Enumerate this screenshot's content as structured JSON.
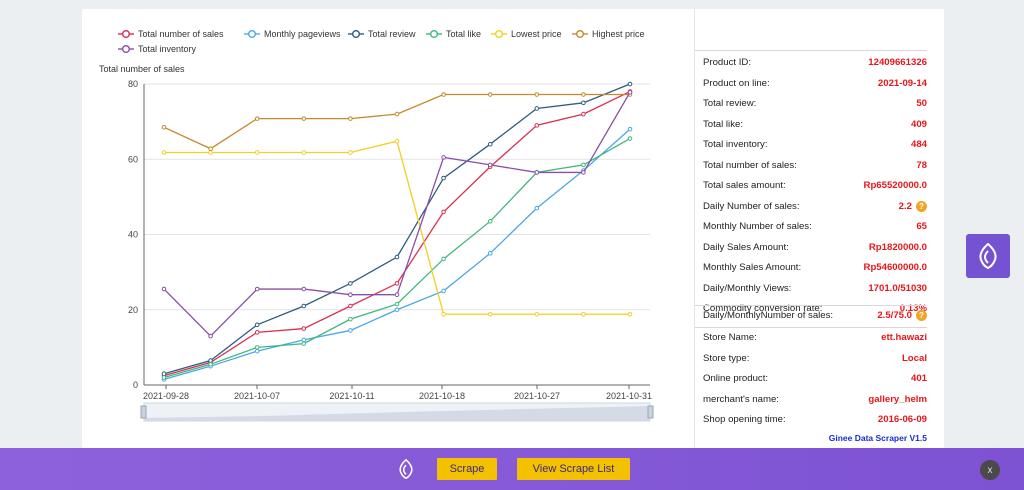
{
  "legend": [
    {
      "name": "Total number of sales",
      "color": "#d9304f"
    },
    {
      "name": "Monthly pageviews",
      "color": "#4aa8e8"
    },
    {
      "name": "Total review",
      "color": "#2e5d82"
    },
    {
      "name": "Total like",
      "color": "#3fb87d"
    },
    {
      "name": "Lowest price",
      "color": "#f0d020"
    },
    {
      "name": "Highest price",
      "color": "#c48a2a"
    },
    {
      "name": "Total inventory",
      "color": "#8a4fa6"
    }
  ],
  "chart_data": {
    "type": "line",
    "ylabel": "Total number of sales",
    "ylim": [
      0,
      80
    ],
    "yticks": [
      0,
      20,
      40,
      60,
      80
    ],
    "x_tick_labels": [
      "2021-09-28",
      "2021-10-07",
      "2021-10-11",
      "2021-10-18",
      "2021-10-27",
      "2021-10-31"
    ],
    "grid": true,
    "legend_position": "top",
    "series": [
      {
        "name": "Total number of sales",
        "color": "#d9304f",
        "values": [
          2.5,
          6,
          14,
          15,
          21,
          27,
          46,
          58,
          69,
          72,
          78
        ]
      },
      {
        "name": "Monthly pageviews",
        "color": "#4aa8e8",
        "values": [
          1.5,
          5,
          9,
          12,
          14.5,
          20,
          25,
          35,
          47,
          57,
          68
        ]
      },
      {
        "name": "Total review",
        "color": "#2e5d82",
        "values": [
          3,
          6.5,
          16,
          21,
          27,
          34,
          55,
          64,
          73.5,
          75,
          80
        ]
      },
      {
        "name": "Total like",
        "color": "#3fb87d",
        "values": [
          2,
          5.5,
          10,
          11,
          17.5,
          21.5,
          33.5,
          43.5,
          56.5,
          58.5,
          65.5
        ]
      },
      {
        "name": "Lowest price",
        "color": "#f0d020",
        "values": [
          61.8,
          61.8,
          61.8,
          61.8,
          61.8,
          64.8,
          18.8,
          18.8,
          18.8,
          18.8,
          18.8
        ]
      },
      {
        "name": "Highest price",
        "color": "#c48a2a",
        "values": [
          68.5,
          62.8,
          70.8,
          70.8,
          70.8,
          72,
          77.2,
          77.2,
          77.2,
          77.2,
          77.2
        ]
      },
      {
        "name": "Total inventory",
        "color": "#8a4fa6",
        "values": [
          25.5,
          13,
          25.5,
          25.5,
          24,
          24,
          60.5,
          58.5,
          56.5,
          56.5,
          77.8
        ]
      }
    ]
  },
  "info_top": [
    {
      "label": "Product ID:",
      "value": "12409661326"
    },
    {
      "label": "Product on line:",
      "value": "2021-09-14"
    },
    {
      "label": "Total review:",
      "value": "50"
    },
    {
      "label": "Total like:",
      "value": "409"
    },
    {
      "label": "Total inventory:",
      "value": "484"
    },
    {
      "label": "Total number of sales:",
      "value": "78"
    },
    {
      "label": "Total sales amount:",
      "value": "Rp65520000.0"
    },
    {
      "label": "Daily Number of sales:",
      "value": "2.2",
      "help": "?"
    },
    {
      "label": "Monthly Number of sales:",
      "value": "65"
    },
    {
      "label": "Daily Sales Amount:",
      "value": "Rp1820000.0"
    },
    {
      "label": "Monthly Sales Amount:",
      "value": "Rp54600000.0"
    },
    {
      "label": "Daily/Monthly Views:",
      "value": "1701.0/51030"
    },
    {
      "label": "Commodity conversion rate:",
      "value": "0.13%"
    }
  ],
  "info_mid": [
    {
      "label": "Daily/MonthlyNumber of sales:",
      "value": "2.5/75.0",
      "help": "?"
    }
  ],
  "info_store": [
    {
      "label": "Store Name:",
      "value": "ett.hawazi"
    },
    {
      "label": "Store type:",
      "value": "Local"
    },
    {
      "label": "Online product:",
      "value": "401"
    },
    {
      "label": "merchant's name:",
      "value": "gallery_helm"
    },
    {
      "label": "Shop opening time:",
      "value": "2016-06-09"
    }
  ],
  "version": "Ginee Data Scraper V1.5",
  "buttons": {
    "scrape": "Scrape",
    "list": "View Scrape List",
    "close": "x"
  }
}
